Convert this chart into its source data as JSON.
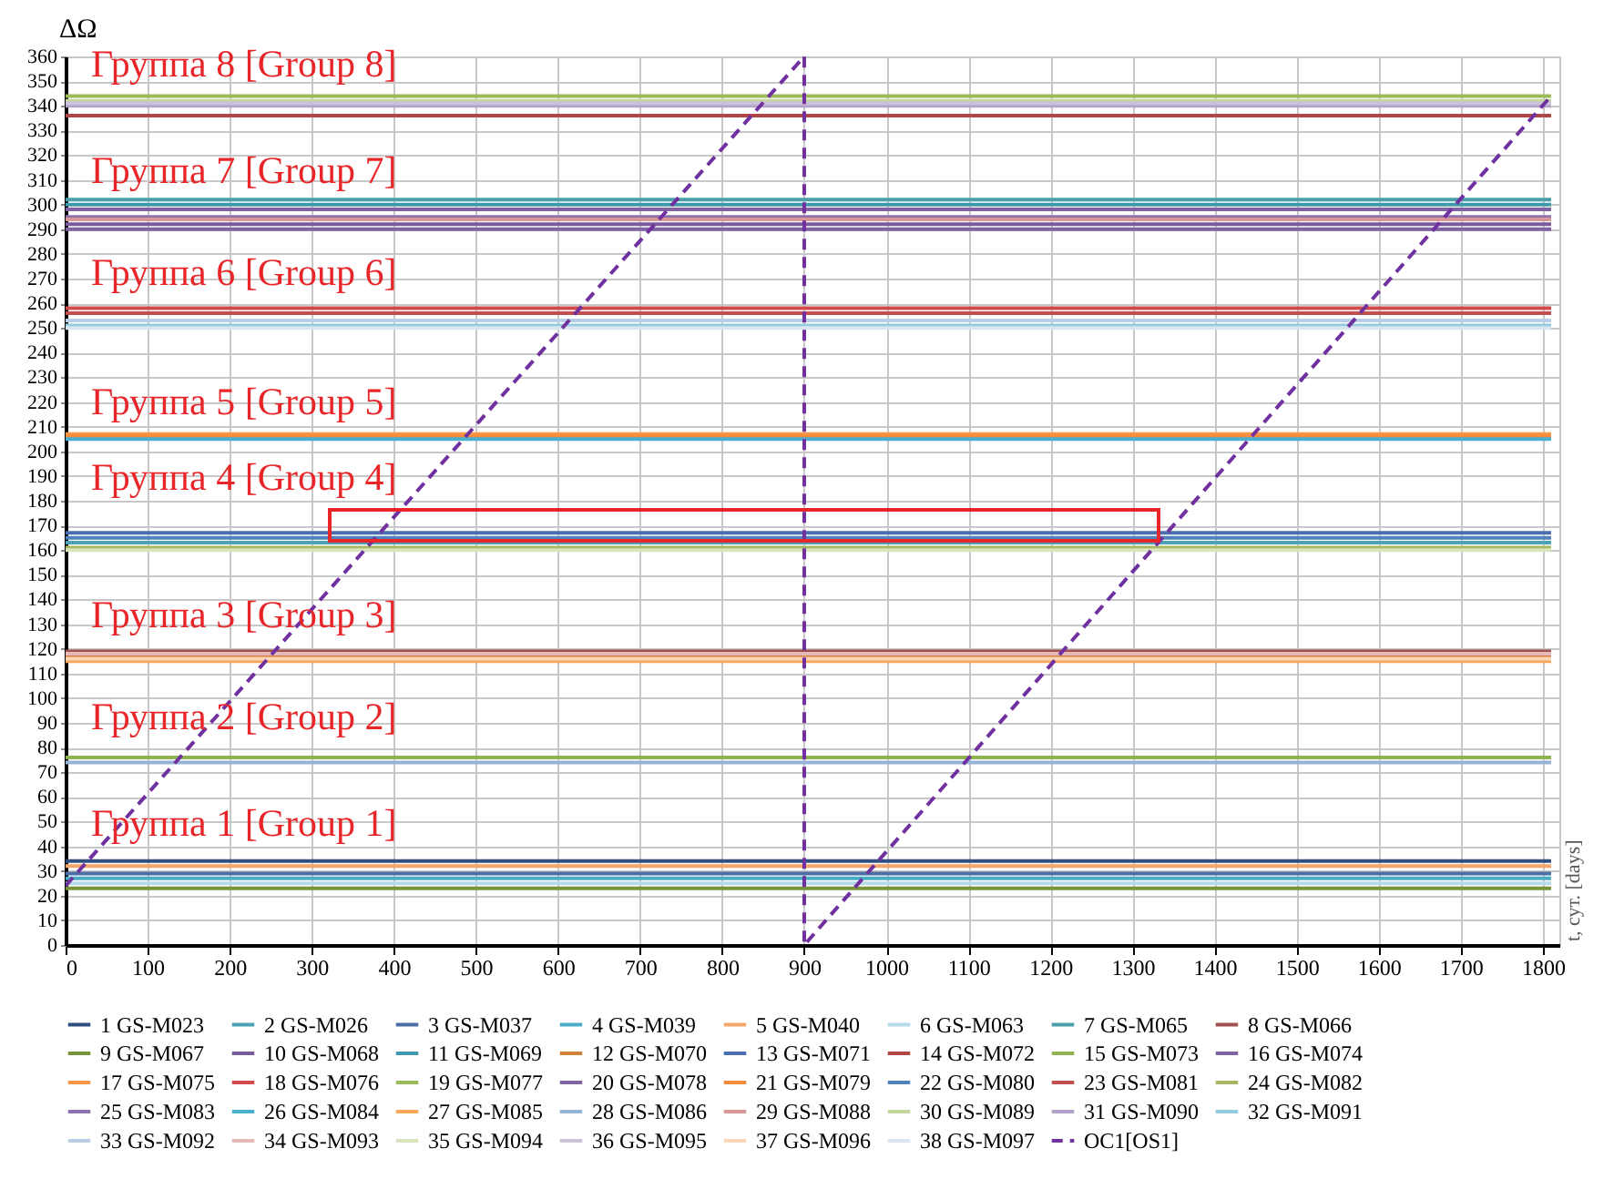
{
  "chart_data": {
    "type": "line",
    "ylabel": "ΔΩ",
    "x": [
      0,
      1810
    ],
    "xlim": [
      0,
      1820
    ],
    "xticks": [
      0,
      100,
      200,
      300,
      400,
      500,
      600,
      700,
      800,
      900,
      1000,
      1100,
      1200,
      1300,
      1400,
      1500,
      1600,
      1700,
      1800
    ],
    "ylim": [
      0,
      360
    ],
    "yticks": [
      0,
      10,
      20,
      30,
      40,
      50,
      60,
      70,
      80,
      90,
      100,
      110,
      120,
      130,
      140,
      150,
      160,
      170,
      180,
      190,
      200,
      210,
      220,
      230,
      240,
      250,
      260,
      270,
      280,
      290,
      300,
      310,
      320,
      330,
      340,
      350,
      360
    ],
    "grid": true,
    "legend": "bottom",
    "line_style": "solid",
    "series": [
      {
        "name": "1 GS-M023",
        "color": "#2f4f7f",
        "values": [
          34,
          34
        ]
      },
      {
        "name": "2 GS-M026",
        "color": "#4aa3b5",
        "values": [
          163,
          163
        ]
      },
      {
        "name": "3 GS-M037",
        "color": "#4a6fa5",
        "values": [
          29,
          29
        ]
      },
      {
        "name": "4 GS-M039",
        "color": "#4bacc6",
        "values": [
          27,
          27
        ]
      },
      {
        "name": "5 GS-M040",
        "color": "#f4a56a",
        "values": [
          32,
          32
        ]
      },
      {
        "name": "6 GS-M063",
        "color": "#b7dbe8",
        "values": [
          25,
          25
        ]
      },
      {
        "name": "7 GS-M065",
        "color": "#4b9fa8",
        "values": [
          302,
          302
        ]
      },
      {
        "name": "8 GS-M066",
        "color": "#a0504d",
        "values": [
          119,
          119
        ]
      },
      {
        "name": "9 GS-M067",
        "color": "#77933c",
        "values": [
          23,
          23
        ]
      },
      {
        "name": "10 GS-M068",
        "color": "#7a5a9a",
        "values": [
          292,
          292
        ]
      },
      {
        "name": "11 GS-M069",
        "color": "#3f9aae",
        "values": [
          300,
          300
        ]
      },
      {
        "name": "12 GS-M070",
        "color": "#d2803a",
        "values": [
          117,
          117
        ]
      },
      {
        "name": "13 GS-M071",
        "color": "#4a6fb0",
        "values": [
          167,
          167
        ]
      },
      {
        "name": "14 GS-M072",
        "color": "#b04545",
        "values": [
          336,
          336
        ]
      },
      {
        "name": "15 GS-M073",
        "color": "#8fb350",
        "values": [
          76,
          76
        ]
      },
      {
        "name": "16 GS-M074",
        "color": "#7e62a1",
        "values": [
          290,
          290
        ]
      },
      {
        "name": "17 GS-M075",
        "color": "#f79646",
        "values": [
          207,
          207
        ]
      },
      {
        "name": "18 GS-M076",
        "color": "#d24a4a",
        "values": [
          258,
          258
        ]
      },
      {
        "name": "19 GS-M077",
        "color": "#9bbb59",
        "values": [
          344,
          344
        ]
      },
      {
        "name": "20 GS-M078",
        "color": "#8064a2",
        "values": [
          298,
          298
        ]
      },
      {
        "name": "21 GS-M079",
        "color": "#f38b3a",
        "values": [
          206,
          206
        ]
      },
      {
        "name": "22 GS-M080",
        "color": "#4f81bd",
        "values": [
          165,
          165
        ]
      },
      {
        "name": "23 GS-M081",
        "color": "#c0504d",
        "values": [
          256,
          256
        ]
      },
      {
        "name": "24 GS-M082",
        "color": "#a8b860",
        "values": [
          161,
          161
        ]
      },
      {
        "name": "25 GS-M083",
        "color": "#8c72b0",
        "values": [
          295,
          295
        ]
      },
      {
        "name": "26 GS-M084",
        "color": "#4bb0d0",
        "values": [
          205,
          205
        ]
      },
      {
        "name": "27 GS-M085",
        "color": "#f9a65a",
        "values": [
          115,
          115
        ]
      },
      {
        "name": "28 GS-M086",
        "color": "#95b3d7",
        "values": [
          74,
          74
        ]
      },
      {
        "name": "29 GS-M088",
        "color": "#d99694",
        "values": [
          294,
          294
        ]
      },
      {
        "name": "30 GS-M089",
        "color": "#c3d69b",
        "values": [
          342,
          342
        ]
      },
      {
        "name": "31 GS-M090",
        "color": "#b3a2c7",
        "values": [
          340,
          340
        ]
      },
      {
        "name": "32 GS-M091",
        "color": "#93cddd",
        "values": [
          251,
          251
        ]
      },
      {
        "name": "33 GS-M092",
        "color": "#b9cde5",
        "values": [
          253,
          253
        ]
      },
      {
        "name": "34 GS-M093",
        "color": "#e6b9b8",
        "values": [
          118,
          118
        ]
      },
      {
        "name": "35 GS-M094",
        "color": "#d7e4bd",
        "values": [
          160,
          160
        ]
      },
      {
        "name": "36 GS-M095",
        "color": "#ccc1da",
        "values": [
          341,
          341
        ]
      },
      {
        "name": "37 GS-M096",
        "color": "#fbd5b5",
        "values": [
          116,
          116
        ]
      },
      {
        "name": "38 GS-M097",
        "color": "#dbe5f1",
        "values": [
          250,
          250
        ]
      },
      {
        "name": "OC1[OS1]",
        "color": "#7030a0",
        "type": "line",
        "line_style": "dashed",
        "x": [
          0,
          900,
          900,
          1810
        ],
        "values": [
          24,
          360,
          0,
          344
        ]
      }
    ],
    "annotations": [
      "Группа 8 [Group 8]",
      "Группа 7 [Group 7]",
      "Группа 6 [Group 6]",
      "Группа 5 [Group 5]",
      "Группа 4 [Group 4]",
      "Группа 3 [Group 3]",
      "Группа 2 [Group 2]",
      "Группа 1 [Group 1]",
      "t, сут. [days]"
    ]
  }
}
